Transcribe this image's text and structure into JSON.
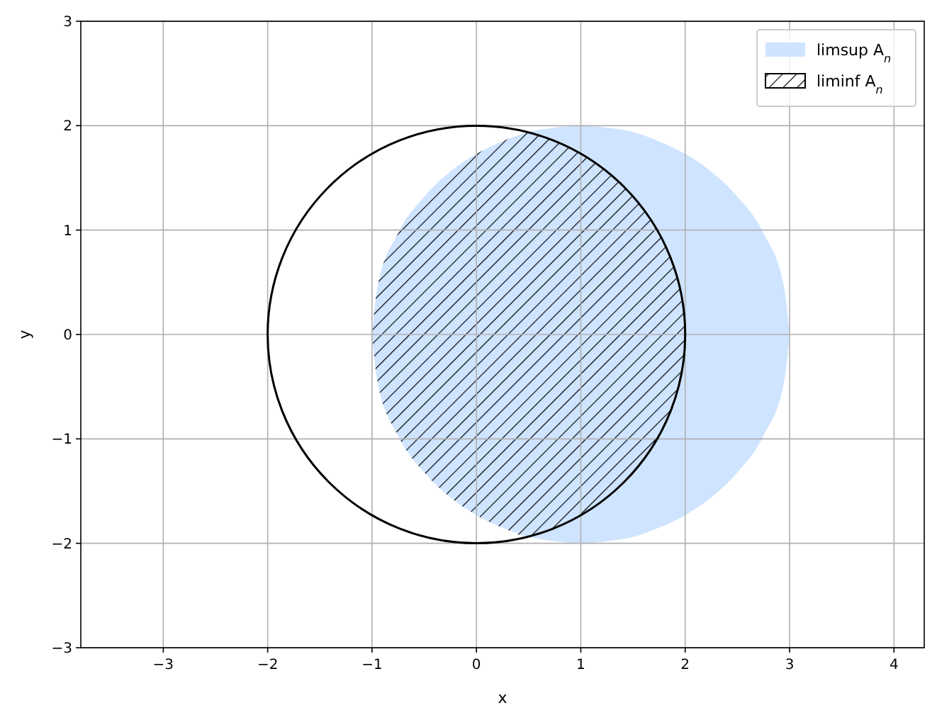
{
  "chart_data": {
    "type": "area",
    "xlabel": "x",
    "ylabel": "y",
    "xlim": [
      -3.79,
      4.29
    ],
    "ylim": [
      -3,
      3
    ],
    "xticks": [
      {
        "value": -3,
        "label": "−3"
      },
      {
        "value": -2,
        "label": "−2"
      },
      {
        "value": -1,
        "label": "−1"
      },
      0,
      1,
      2,
      3,
      4
    ],
    "yticks": [
      {
        "value": -3,
        "label": "−3"
      },
      {
        "value": -2,
        "label": "−2"
      },
      {
        "value": -1,
        "label": "−1"
      },
      0,
      1,
      2,
      3
    ],
    "grid": true,
    "legend": "top right",
    "series": [
      {
        "name": "limsup A$_{n}$",
        "color": "#cfe4ff",
        "x": [
          -1,
          -0.95,
          -0.75,
          -0.5,
          -0.25,
          0,
          0.25,
          0.5,
          0.75,
          1,
          1.25,
          1.5,
          1.75,
          2,
          2.25,
          2.5,
          2.75,
          2.95,
          3
        ],
        "values": [
          0,
          0.44,
          0.97,
          1.32,
          1.56,
          1.73,
          1.85,
          1.94,
          1.98,
          2,
          1.98,
          1.94,
          1.85,
          1.73,
          1.56,
          1.32,
          0.97,
          0.44,
          0
        ]
      },
      {
        "color": "#cfe4ff",
        "x": [
          -1,
          -0.95,
          -0.75,
          -0.5,
          -0.25,
          0,
          0.25,
          0.5,
          0.75,
          1,
          1.25,
          1.5,
          1.75,
          2,
          2.25,
          2.5,
          2.75,
          2.95,
          3
        ],
        "values": [
          0,
          -0.44,
          -0.97,
          -1.32,
          -1.56,
          -1.73,
          -1.85,
          -1.94,
          -1.98,
          -2,
          -1.98,
          -1.94,
          -1.85,
          -1.73,
          -1.56,
          -1.32,
          -0.97,
          -0.44,
          0
        ]
      },
      {
        "name": "liminf A$_{n}$",
        "color": "#000000",
        "x": [
          -1,
          -0.95,
          -0.75,
          -0.5,
          -0.25,
          0,
          0.25,
          0.5,
          0.75,
          1,
          1.25,
          1.5,
          1.75,
          1.95,
          2
        ],
        "values": [
          0,
          0.44,
          0.97,
          1.32,
          1.56,
          1.73,
          1.85,
          1.94,
          1.85,
          1.73,
          1.56,
          1.32,
          0.97,
          0.44,
          0
        ]
      },
      {
        "color": "#000000",
        "x": [
          -1,
          -0.95,
          -0.75,
          -0.5,
          -0.25,
          0,
          0.25,
          0.5,
          0.75,
          1,
          1.25,
          1.5,
          1.75,
          1.95,
          2
        ],
        "values": [
          0,
          -0.44,
          -0.97,
          -1.32,
          -1.56,
          -1.73,
          -1.85,
          -1.94,
          -1.85,
          -1.73,
          -1.56,
          -1.32,
          -0.97,
          -0.44,
          0
        ]
      }
    ]
  }
}
